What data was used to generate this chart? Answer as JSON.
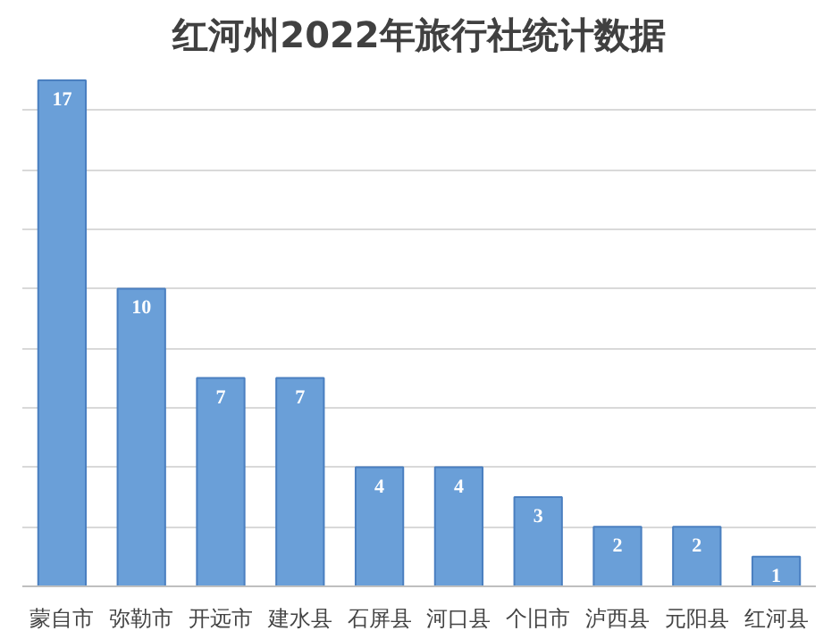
{
  "chart_data": {
    "type": "bar",
    "title": "红河州2022年旅行社统计数据",
    "categories": [
      "蒙自市",
      "弥勒市",
      "开远市",
      "建水县",
      "石屏县",
      "河口县",
      "个旧市",
      "泸西县",
      "元阳县",
      "红河县"
    ],
    "values": [
      17,
      10,
      7,
      7,
      4,
      4,
      3,
      2,
      2,
      1
    ],
    "color": "#6a9fd8",
    "grid": "y",
    "tick_labels": "x",
    "data_labels": true
  }
}
